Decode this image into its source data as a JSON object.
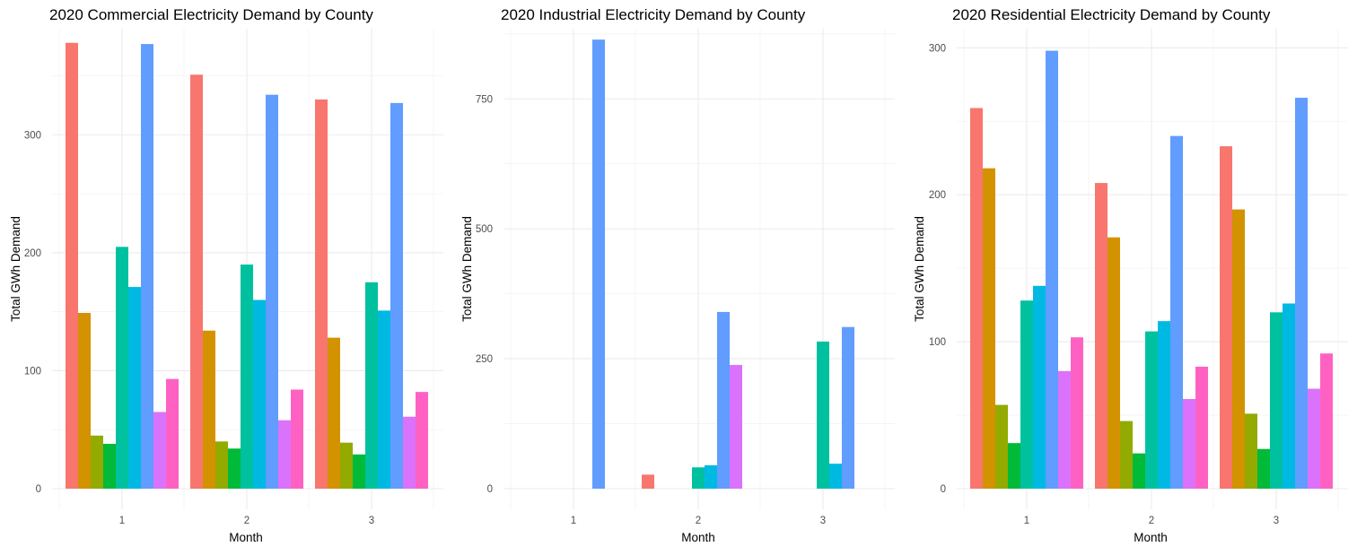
{
  "chart_data": [
    {
      "type": "bar",
      "title": "2020 Commercial Electricity Demand by County",
      "xlabel": "Month",
      "ylabel": "Total GWh Demand",
      "categories": [
        "1",
        "2",
        "3"
      ],
      "yticks": [
        "0",
        "100",
        "200",
        "300"
      ],
      "ylim": [
        0,
        390
      ],
      "grid": true,
      "legend": "none",
      "series": [
        {
          "color": "#F8766D",
          "values": [
            378,
            351,
            330
          ]
        },
        {
          "color": "#D39200",
          "values": [
            149,
            134,
            128
          ]
        },
        {
          "color": "#93AA00",
          "values": [
            45,
            40,
            39
          ]
        },
        {
          "color": "#00BA38",
          "values": [
            38,
            34,
            29
          ]
        },
        {
          "color": "#00C19F",
          "values": [
            205,
            190,
            175
          ]
        },
        {
          "color": "#00B9E3",
          "values": [
            171,
            160,
            151
          ]
        },
        {
          "color": "#619CFF",
          "values": [
            377,
            334,
            327
          ]
        },
        {
          "color": "#DB72FB",
          "values": [
            65,
            58,
            61
          ]
        },
        {
          "color": "#FF61C3",
          "values": [
            93,
            84,
            82
          ]
        }
      ]
    },
    {
      "type": "bar",
      "title": "2020 Industrial Electricity Demand by County",
      "xlabel": "Month",
      "ylabel": "Total GWh Demand",
      "categories": [
        "1",
        "2",
        "3"
      ],
      "yticks": [
        "0",
        "250",
        "500",
        "750"
      ],
      "ylim": [
        0,
        885
      ],
      "grid": true,
      "legend": "none",
      "series": [
        {
          "color": "#F8766D",
          "values": [
            null,
            27,
            null
          ]
        },
        {
          "color": "#D39200",
          "values": [
            null,
            null,
            null
          ]
        },
        {
          "color": "#93AA00",
          "values": [
            null,
            null,
            null
          ]
        },
        {
          "color": "#00BA38",
          "values": [
            null,
            null,
            null
          ]
        },
        {
          "color": "#00C19F",
          "values": [
            null,
            41,
            283
          ]
        },
        {
          "color": "#00B9E3",
          "values": [
            null,
            45,
            48
          ]
        },
        {
          "color": "#619CFF",
          "values": [
            864,
            340,
            311
          ]
        },
        {
          "color": "#DB72FB",
          "values": [
            null,
            238,
            null
          ]
        },
        {
          "color": "#FF61C3",
          "values": [
            null,
            null,
            null
          ]
        }
      ]
    },
    {
      "type": "bar",
      "title": "2020 Residential Electricity Demand by County",
      "xlabel": "Month",
      "ylabel": "Total GWh Demand",
      "categories": [
        "1",
        "2",
        "3"
      ],
      "yticks": [
        "0",
        "100",
        "200",
        "300"
      ],
      "ylim": [
        0,
        313
      ],
      "grid": true,
      "legend": "none",
      "series": [
        {
          "color": "#F8766D",
          "values": [
            259,
            208,
            233
          ]
        },
        {
          "color": "#D39200",
          "values": [
            218,
            171,
            190
          ]
        },
        {
          "color": "#93AA00",
          "values": [
            57,
            46,
            51
          ]
        },
        {
          "color": "#00BA38",
          "values": [
            31,
            24,
            27
          ]
        },
        {
          "color": "#00C19F",
          "values": [
            128,
            107,
            120
          ]
        },
        {
          "color": "#00B9E3",
          "values": [
            138,
            114,
            126
          ]
        },
        {
          "color": "#619CFF",
          "values": [
            298,
            240,
            266
          ]
        },
        {
          "color": "#DB72FB",
          "values": [
            80,
            61,
            68
          ]
        },
        {
          "color": "#FF61C3",
          "values": [
            103,
            83,
            92
          ]
        }
      ]
    }
  ]
}
